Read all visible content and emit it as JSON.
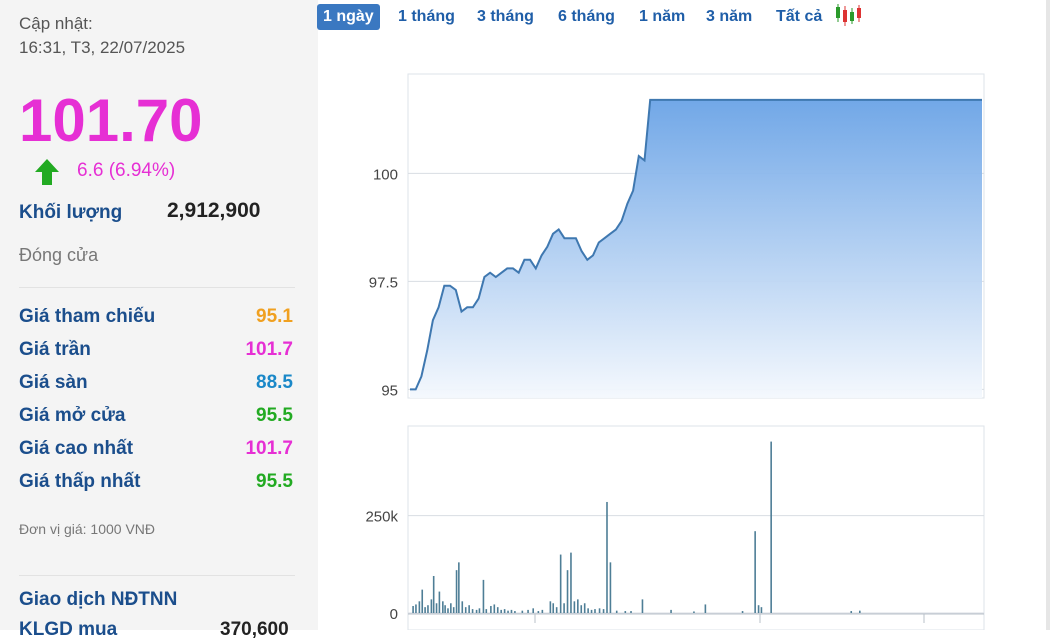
{
  "info": {
    "update_label": "Cập nhật:",
    "update_time": "16:31, T3, 22/07/2025",
    "price": "101.70",
    "change": "6.6 (6.94%)",
    "volume_label": "Khối lượng",
    "volume_value": "2,912,900",
    "status": "Đóng cửa",
    "rows": [
      {
        "label": "Giá tham chiếu",
        "value": "95.1"
      },
      {
        "label": "Giá trần",
        "value": "101.7"
      },
      {
        "label": "Giá sàn",
        "value": "88.5"
      },
      {
        "label": "Giá mở cửa",
        "value": "95.5"
      },
      {
        "label": "Giá cao nhất",
        "value": "101.7"
      },
      {
        "label": "Giá thấp nhất",
        "value": "95.5"
      }
    ],
    "unit_note": "Đơn vị giá: 1000 VNĐ",
    "foreign_title": "Giao dịch NĐTNN",
    "foreign_row_label": "KLGD mua",
    "foreign_row_value": "370,600"
  },
  "colors": {
    "price": "#e62fd4",
    "ref": "#f0a020",
    "ceiling": "#e62fd4",
    "floor": "#1a88c8",
    "up": "#22aa22",
    "label": "#1b4e8c",
    "line": "#3f78b0",
    "volume_bar": "#4e7e96"
  },
  "tabs": [
    {
      "label": "1 ngày",
      "active": true
    },
    {
      "label": "1 tháng",
      "active": false
    },
    {
      "label": "3 tháng",
      "active": false
    },
    {
      "label": "6 tháng",
      "active": false
    },
    {
      "label": "1 năm",
      "active": false
    },
    {
      "label": "3 năm",
      "active": false
    },
    {
      "label": "Tất cả",
      "active": false
    }
  ],
  "icons": {
    "arrow": "arrow-up-icon",
    "chart": "candlestick-icon"
  },
  "chart_data": [
    {
      "type": "area",
      "ylim": [
        94.8,
        102.3
      ],
      "yticks": [
        95,
        97.5,
        100
      ],
      "ytick_labels": [
        "95",
        "97.5",
        "100"
      ],
      "grid": true,
      "x": [
        0,
        1,
        2,
        3,
        4,
        5,
        6,
        7,
        8,
        9,
        10,
        11,
        12,
        13,
        14,
        15,
        16,
        17,
        18,
        19,
        20,
        21,
        22,
        23,
        24,
        25,
        26,
        27,
        28,
        29,
        30,
        31,
        32,
        33,
        34,
        35,
        36,
        37,
        38,
        39,
        40,
        41,
        42,
        43,
        44,
        45,
        46,
        47,
        48,
        49,
        50,
        51,
        52,
        53,
        54,
        55,
        56,
        57,
        58,
        59,
        60,
        61,
        62,
        63,
        64,
        65,
        66,
        67,
        68,
        69,
        70,
        71,
        72,
        73,
        74,
        75,
        76,
        77,
        78,
        79,
        80,
        100
      ],
      "values": [
        95.0,
        95.0,
        95.3,
        95.9,
        96.6,
        96.9,
        97.4,
        97.4,
        97.3,
        96.8,
        96.9,
        96.9,
        97.1,
        97.6,
        97.7,
        97.6,
        97.7,
        97.8,
        97.8,
        97.7,
        98.0,
        98.0,
        97.8,
        98.1,
        98.3,
        98.6,
        98.7,
        98.5,
        98.5,
        98.5,
        98.2,
        98.0,
        98.1,
        98.4,
        98.5,
        98.6,
        98.7,
        98.9,
        99.3,
        99.6,
        100.4,
        100.3,
        101.7,
        101.7,
        101.7,
        101.7,
        101.7,
        101.7,
        101.7,
        101.7,
        101.7,
        101.7,
        101.7,
        101.7,
        101.7,
        101.7,
        101.7,
        101.7,
        101.7,
        101.7,
        101.7,
        101.7,
        101.7,
        101.7,
        101.7,
        101.7,
        101.7,
        101.7,
        101.7,
        101.7,
        101.7,
        101.7,
        101.7,
        101.7,
        101.7,
        101.7,
        101.7,
        101.7,
        101.7,
        101.7,
        101.7,
        101.7
      ]
    },
    {
      "type": "bar",
      "ylim": [
        0,
        480000
      ],
      "yticks": [
        0,
        250000
      ],
      "ytick_labels": [
        "0",
        "250k"
      ],
      "grid": true,
      "bars": [
        {
          "x": 0.4,
          "v": 18000
        },
        {
          "x": 0.9,
          "v": 22000
        },
        {
          "x": 1.5,
          "v": 30000
        },
        {
          "x": 2.0,
          "v": 60000
        },
        {
          "x": 2.5,
          "v": 15000
        },
        {
          "x": 3.0,
          "v": 20000
        },
        {
          "x": 3.6,
          "v": 35000
        },
        {
          "x": 4.0,
          "v": 95000
        },
        {
          "x": 4.5,
          "v": 25000
        },
        {
          "x": 5.0,
          "v": 55000
        },
        {
          "x": 5.6,
          "v": 30000
        },
        {
          "x": 6.0,
          "v": 20000
        },
        {
          "x": 6.5,
          "v": 12000
        },
        {
          "x": 7.0,
          "v": 25000
        },
        {
          "x": 7.5,
          "v": 15000
        },
        {
          "x": 8.0,
          "v": 110000
        },
        {
          "x": 8.4,
          "v": 130000
        },
        {
          "x": 9.0,
          "v": 30000
        },
        {
          "x": 9.6,
          "v": 15000
        },
        {
          "x": 10.2,
          "v": 20000
        },
        {
          "x": 10.8,
          "v": 10000
        },
        {
          "x": 11.5,
          "v": 8000
        },
        {
          "x": 12.0,
          "v": 12000
        },
        {
          "x": 12.7,
          "v": 85000
        },
        {
          "x": 13.2,
          "v": 10000
        },
        {
          "x": 14.0,
          "v": 18000
        },
        {
          "x": 14.6,
          "v": 22000
        },
        {
          "x": 15.2,
          "v": 15000
        },
        {
          "x": 15.8,
          "v": 8000
        },
        {
          "x": 16.4,
          "v": 10000
        },
        {
          "x": 17.0,
          "v": 6000
        },
        {
          "x": 17.6,
          "v": 8000
        },
        {
          "x": 18.2,
          "v": 5000
        },
        {
          "x": 19.5,
          "v": 6000
        },
        {
          "x": 20.5,
          "v": 8000
        },
        {
          "x": 21.4,
          "v": 12000
        },
        {
          "x": 22.3,
          "v": 5000
        },
        {
          "x": 23.0,
          "v": 8000
        },
        {
          "x": 24.4,
          "v": 30000
        },
        {
          "x": 24.9,
          "v": 25000
        },
        {
          "x": 25.5,
          "v": 15000
        },
        {
          "x": 26.2,
          "v": 150000
        },
        {
          "x": 26.8,
          "v": 25000
        },
        {
          "x": 27.4,
          "v": 110000
        },
        {
          "x": 28.0,
          "v": 155000
        },
        {
          "x": 28.6,
          "v": 30000
        },
        {
          "x": 29.2,
          "v": 35000
        },
        {
          "x": 29.8,
          "v": 20000
        },
        {
          "x": 30.4,
          "v": 25000
        },
        {
          "x": 31.0,
          "v": 12000
        },
        {
          "x": 31.6,
          "v": 8000
        },
        {
          "x": 32.2,
          "v": 10000
        },
        {
          "x": 33.0,
          "v": 12000
        },
        {
          "x": 33.7,
          "v": 10000
        },
        {
          "x": 34.3,
          "v": 285000
        },
        {
          "x": 34.9,
          "v": 130000
        },
        {
          "x": 36.0,
          "v": 6000
        },
        {
          "x": 37.5,
          "v": 5000
        },
        {
          "x": 38.5,
          "v": 5000
        },
        {
          "x": 40.5,
          "v": 35000
        },
        {
          "x": 45.5,
          "v": 8000
        },
        {
          "x": 49.5,
          "v": 4000
        },
        {
          "x": 51.5,
          "v": 22000
        },
        {
          "x": 58.0,
          "v": 5000
        },
        {
          "x": 60.2,
          "v": 210000
        },
        {
          "x": 60.8,
          "v": 20000
        },
        {
          "x": 61.3,
          "v": 15000
        },
        {
          "x": 63.0,
          "v": 440000
        },
        {
          "x": 77.0,
          "v": 5000
        },
        {
          "x": 78.5,
          "v": 6000
        }
      ]
    }
  ]
}
